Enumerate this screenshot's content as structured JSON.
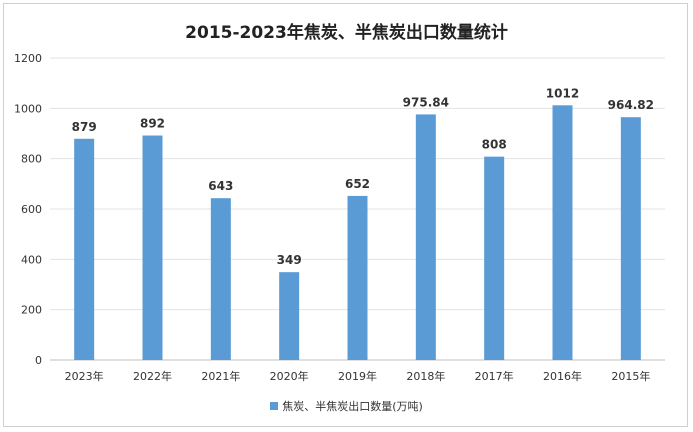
{
  "chart_data": {
    "type": "bar",
    "title": "2015-2023年焦炭、半焦炭出口数量统计",
    "categories": [
      "2023年",
      "2022年",
      "2021年",
      "2020年",
      "2019年",
      "2018年",
      "2017年",
      "2016年",
      "2015年"
    ],
    "series": [
      {
        "name": "焦炭、半焦炭出口数量(万吨)",
        "values": [
          879,
          892,
          643,
          349,
          652,
          975.84,
          808,
          1012,
          964.82
        ],
        "labels": [
          "879",
          "892",
          "643",
          "349",
          "652",
          "975.84",
          "808",
          "1012",
          "964.82"
        ],
        "color": "#5b9bd5"
      }
    ],
    "ylim": [
      0,
      1200
    ],
    "yticks": [
      0,
      200,
      400,
      600,
      800,
      1000,
      1200
    ],
    "xlabel": "",
    "ylabel": "",
    "grid": true,
    "legend": "bottom"
  }
}
